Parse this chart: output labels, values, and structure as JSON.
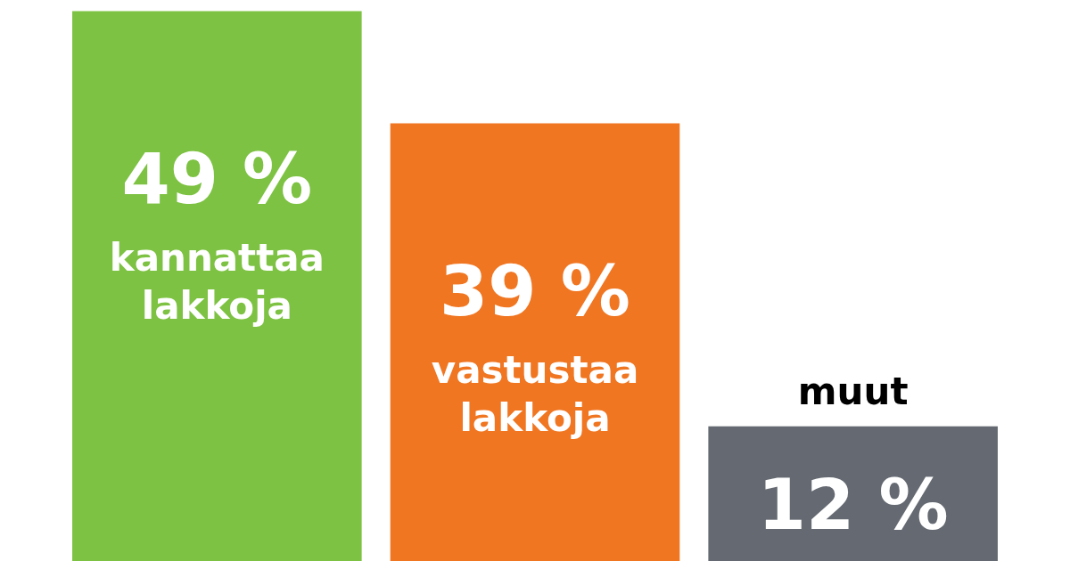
{
  "chart_data": {
    "type": "bar",
    "categories": [
      "kannattaa lakkoja",
      "vastustaa lakkoja",
      "muut"
    ],
    "values": [
      49,
      39,
      12
    ],
    "colors": [
      "#7dc242",
      "#f07622",
      "#656a72"
    ],
    "value_labels": [
      "49 %",
      "39 %",
      "12 %"
    ]
  }
}
